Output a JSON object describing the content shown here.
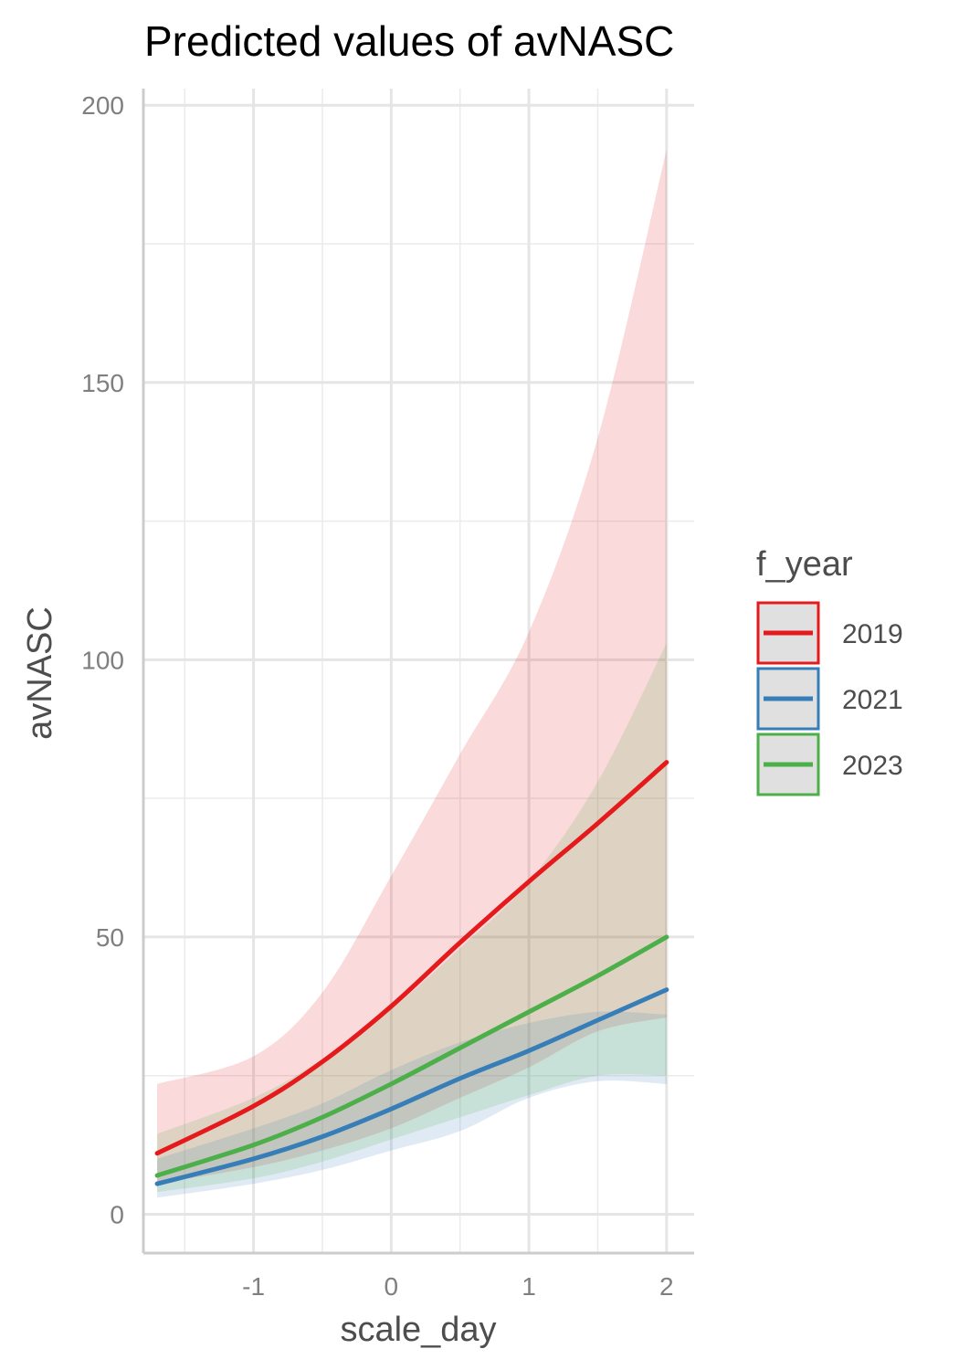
{
  "chart_data": {
    "type": "line",
    "title": "Predicted values of avNASC",
    "xlabel": "scale_day",
    "ylabel": "avNASC",
    "xlim": [
      -1.8,
      2.2
    ],
    "ylim": [
      -7,
      203
    ],
    "x_ticks": [
      -1,
      0,
      1,
      2
    ],
    "x_tick_labels": [
      "-1",
      "0",
      "1",
      "2"
    ],
    "y_ticks": [
      0,
      50,
      100,
      150,
      200
    ],
    "y_tick_labels": [
      "0",
      "50",
      "100",
      "150",
      "200"
    ],
    "x_minor_ticks": [
      -1.5,
      -0.5,
      0.5,
      1.5
    ],
    "y_minor_ticks": [
      25,
      75,
      125,
      175
    ],
    "grid": true,
    "legend_title": "f_year",
    "legend_position": "right",
    "x": [
      -1.7,
      -1.0,
      -0.5,
      0.0,
      0.5,
      1.0,
      1.5,
      2.0
    ],
    "series": [
      {
        "name": "2019",
        "color": "#E41A1C",
        "values": [
          11,
          19.5,
          27.5,
          37.5,
          49,
          60,
          70.5,
          81.5
        ],
        "lower": [
          5.5,
          8.5,
          11.5,
          15.5,
          21,
          26.5,
          33,
          35.5
        ],
        "upper": [
          23.5,
          28.5,
          40,
          61,
          83,
          105,
          140,
          192
        ]
      },
      {
        "name": "2021",
        "color": "#377EB8",
        "values": [
          5.5,
          10,
          14,
          19,
          24.5,
          29.5,
          35,
          40.5
        ],
        "lower": [
          3,
          5.5,
          8,
          11.5,
          15,
          21,
          24,
          23.5
        ],
        "upper": [
          10,
          15.5,
          20,
          26,
          31,
          34.5,
          36.5,
          36
        ]
      },
      {
        "name": "2023",
        "color": "#4DAF4A",
        "values": [
          7,
          12.5,
          17.5,
          23.5,
          30,
          36.5,
          43,
          50
        ],
        "lower": [
          4,
          6.5,
          9.5,
          13.5,
          17.5,
          21.5,
          25,
          25
        ],
        "upper": [
          14.5,
          21,
          28,
          37,
          48,
          60,
          78,
          103
        ]
      }
    ]
  }
}
